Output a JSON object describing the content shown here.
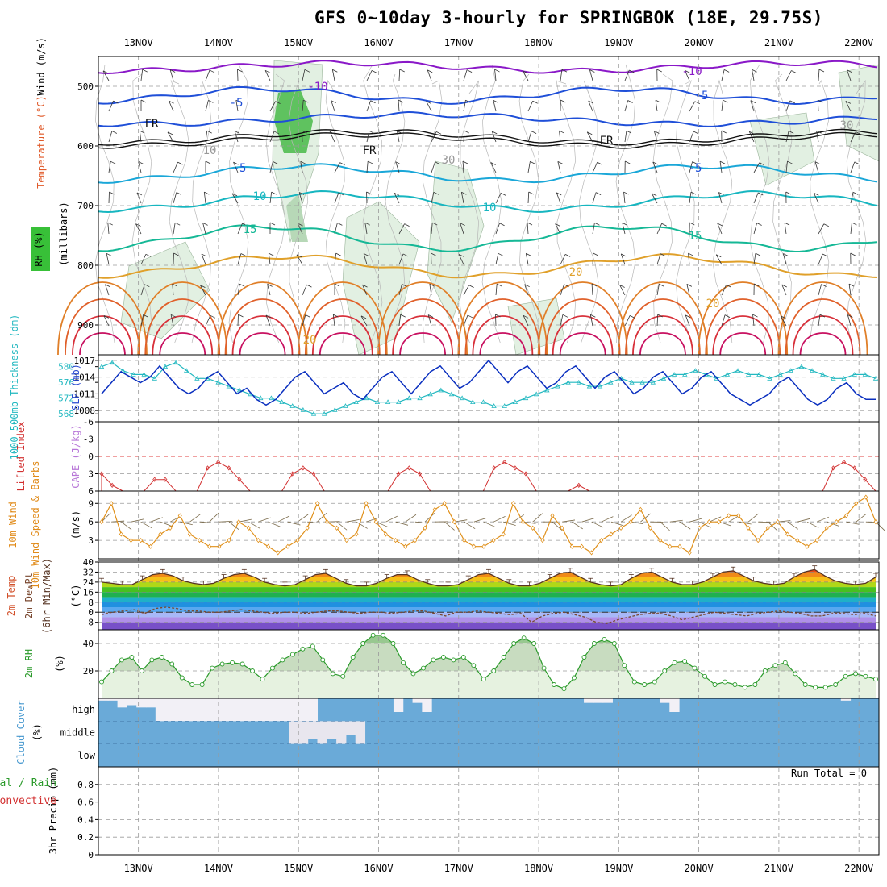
{
  "title": "GFS 0~10day 3-hourly for SPRINGBOK (18E, 29.75S)",
  "dates": [
    "13NOV",
    "14NOV",
    "15NOV",
    "16NOV",
    "17NOV",
    "18NOV",
    "19NOV",
    "20NOV",
    "21NOV",
    "22NOV"
  ],
  "panels": {
    "upper": {
      "label_wind": "Wind (m/s)",
      "label_temp": "Temperature (°C)",
      "label_rh": "RH (%)",
      "label_mb": "(millibars)",
      "ticks": [
        "500",
        "600",
        "700",
        "800",
        "900"
      ],
      "contour_labels": [
        "-10",
        "-10",
        "-5",
        "-5",
        "-5",
        "-5",
        "FR",
        "FR",
        "FR",
        "10",
        "10",
        "15",
        "15",
        "20",
        "20",
        "20",
        "10",
        "30",
        "30"
      ]
    },
    "slp": {
      "label_thick": "1000-500mb Thickness (dm)",
      "label_slp": "SLP (mb)",
      "left_ticks": [
        "580",
        "576",
        "572",
        "568"
      ],
      "right_ticks": [
        "1017",
        "1014",
        "1011",
        "1008"
      ]
    },
    "li": {
      "label_li": "Lifted Index",
      "label_cape": "CAPE (J/kg)",
      "ticks": [
        "-6",
        "-3",
        "0",
        "3",
        "6"
      ]
    },
    "wind10": {
      "label": "10m Wind Speed & Barbs",
      "unit": "(m/s)",
      "ticks": [
        "9",
        "6",
        "3"
      ]
    },
    "temp": {
      "label1": "2m Temp",
      "label2": "2m DewPt",
      "label3": "(6hr Min/Max)",
      "unit": "(°C)",
      "ticks": [
        "40",
        "32",
        "24",
        "16",
        "8",
        "0",
        "-8"
      ]
    },
    "rh2m": {
      "label": "2m RH",
      "unit": "(%)",
      "ticks": [
        "40",
        "20"
      ]
    },
    "cloud": {
      "label": "Cloud Cover",
      "unit": "(%)",
      "levels": [
        "high",
        "middle",
        "low"
      ]
    },
    "precip": {
      "label1": "Total / Rain",
      "label2": "Convective",
      "label3": "3hr Precip (mm)",
      "ticks": [
        "0.8",
        "0.6",
        "0.4",
        "0.2",
        "0"
      ],
      "run_total": "Run Total = 0"
    }
  },
  "colors": {
    "grid": "#9a9a9a",
    "slp": "#0a2fbf",
    "thick": "#22b8c0",
    "li": "#d23030",
    "wind": "#e0901a",
    "barb": "#7a6a4a",
    "rh": "#2a9a2a",
    "cloudbg": "#6aaad8",
    "cloud": "#f2f0f6"
  },
  "chart_data": {
    "type": "line",
    "x_axis": "days 12.5NOV to 22.25NOV, 3-hourly",
    "series": [
      {
        "name": "SLP (mb)",
        "values": [
          1011,
          1013,
          1015,
          1014,
          1013,
          1014,
          1016,
          1014,
          1012,
          1011,
          1012,
          1014,
          1015,
          1013,
          1011,
          1012,
          1010,
          1009,
          1010,
          1012,
          1014,
          1015,
          1013,
          1011,
          1012,
          1013,
          1011,
          1010,
          1012,
          1014,
          1015,
          1013,
          1011,
          1013,
          1015,
          1016,
          1014,
          1012,
          1013,
          1015,
          1017,
          1015,
          1013,
          1015,
          1016,
          1014,
          1012,
          1013,
          1015,
          1016,
          1014,
          1012,
          1014,
          1015,
          1013,
          1011,
          1012,
          1014,
          1015,
          1013,
          1011,
          1012,
          1014,
          1015,
          1013,
          1011,
          1010,
          1009,
          1010,
          1011,
          1013,
          1014,
          1012,
          1010,
          1009,
          1010,
          1012,
          1013,
          1011,
          1010,
          1010
        ]
      },
      {
        "name": "1000-500mb Thickness (dm)",
        "values": [
          580,
          581,
          579,
          578,
          578,
          577,
          580,
          581,
          579,
          577,
          577,
          576,
          575,
          574,
          573,
          572,
          572,
          571,
          570,
          569,
          568,
          568,
          569,
          570,
          571,
          572,
          571,
          571,
          571,
          572,
          572,
          573,
          574,
          573,
          572,
          571,
          571,
          570,
          570,
          571,
          572,
          573,
          574,
          575,
          576,
          576,
          575,
          575,
          576,
          577,
          576,
          576,
          576,
          577,
          578,
          578,
          579,
          578,
          577,
          578,
          579,
          578,
          578,
          577,
          578,
          579,
          580,
          579,
          578,
          577,
          577,
          578,
          578,
          577
        ]
      },
      {
        "name": "Lifted Index",
        "values": [
          3,
          5,
          6,
          6,
          6,
          4,
          4,
          6,
          6,
          6,
          2,
          1,
          2,
          4,
          6,
          6,
          6,
          6,
          3,
          2,
          3,
          6,
          6,
          6,
          6,
          6,
          6,
          6,
          3,
          2,
          3,
          6,
          6,
          6,
          6,
          6,
          6,
          2,
          1,
          2,
          3,
          6,
          6,
          6,
          6,
          5,
          6,
          6,
          6,
          6,
          6,
          6,
          6,
          6,
          6,
          6,
          6,
          6,
          6,
          6,
          6,
          6,
          6,
          6,
          6,
          6,
          6,
          6,
          6,
          2,
          1,
          2,
          4,
          6
        ]
      },
      {
        "name": "10m Wind Speed (m/s)",
        "values": [
          6,
          9,
          4,
          3,
          3,
          2,
          4,
          5,
          7,
          4,
          3,
          2,
          2,
          3,
          6,
          5,
          3,
          2,
          1,
          2,
          3,
          5,
          9,
          6,
          5,
          3,
          4,
          9,
          6,
          4,
          3,
          2,
          3,
          5,
          8,
          9,
          6,
          3,
          2,
          2,
          3,
          4,
          9,
          6,
          5,
          3,
          7,
          5,
          2,
          2,
          1,
          3,
          4,
          5,
          6,
          8,
          5,
          3,
          2,
          2,
          1,
          5,
          6,
          6,
          7,
          7,
          5,
          3,
          5,
          6,
          4,
          3,
          2,
          3,
          5,
          6,
          7,
          9,
          10,
          6
        ]
      },
      {
        "name": "2m Temp (°C)",
        "values": [
          24,
          23,
          22,
          22,
          26,
          30,
          31,
          29,
          25,
          23,
          22,
          23,
          27,
          30,
          31,
          28,
          24,
          22,
          21,
          22,
          26,
          30,
          31,
          27,
          23,
          21,
          21,
          23,
          27,
          30,
          30,
          26,
          23,
          21,
          21,
          22,
          26,
          30,
          31,
          27,
          23,
          21,
          21,
          23,
          27,
          31,
          32,
          28,
          24,
          22,
          21,
          22,
          27,
          31,
          32,
          28,
          24,
          22,
          22,
          24,
          28,
          32,
          33,
          29,
          25,
          23,
          22,
          23,
          28,
          32,
          34,
          29,
          25,
          23,
          22,
          23,
          28
        ]
      },
      {
        "name": "2m DewPt (°C)",
        "values": [
          -2,
          0,
          1,
          2,
          -1,
          3,
          4,
          3,
          1,
          1,
          0,
          0,
          1,
          2,
          1,
          0,
          -1,
          0,
          0,
          -1,
          0,
          1,
          1,
          0,
          -1,
          0,
          0,
          -1,
          0,
          1,
          1,
          -1,
          -3,
          0,
          0,
          1,
          0,
          -1,
          -2,
          -1,
          -8,
          -3,
          -1,
          0,
          -2,
          -4,
          -8,
          -9,
          -6,
          -4,
          -2,
          -1,
          -1,
          -3,
          -6,
          -4,
          -2,
          0,
          -1,
          -2,
          -3,
          -1,
          0,
          1,
          0,
          -1,
          -3,
          -3,
          -1,
          -1,
          -2,
          -1,
          -3
        ]
      },
      {
        "name": "2m RH (%)",
        "values": [
          12,
          20,
          28,
          30,
          20,
          28,
          30,
          25,
          15,
          10,
          10,
          22,
          25,
          26,
          25,
          20,
          14,
          22,
          28,
          32,
          36,
          38,
          28,
          18,
          16,
          30,
          40,
          46,
          46,
          40,
          26,
          18,
          22,
          28,
          30,
          28,
          30,
          24,
          14,
          20,
          30,
          40,
          44,
          40,
          22,
          10,
          7,
          15,
          30,
          40,
          43,
          40,
          24,
          12,
          10,
          12,
          20,
          26,
          27,
          22,
          16,
          10,
          12,
          10,
          8,
          10,
          20,
          24,
          26,
          18,
          10,
          8,
          8,
          10,
          16,
          18,
          16,
          14
        ]
      },
      {
        "name": "Cloud Cover high (%)",
        "values": [
          10,
          10,
          40,
          30,
          40,
          40,
          100,
          100,
          100,
          100,
          100,
          100,
          100,
          100,
          100,
          100,
          100,
          100,
          100,
          100,
          100,
          100,
          100,
          0,
          0,
          0,
          0,
          0,
          0,
          0,
          0,
          60,
          0,
          20,
          60,
          0,
          0,
          0,
          0,
          0,
          0,
          0,
          0,
          0,
          0,
          0,
          0,
          0,
          0,
          0,
          0,
          20,
          20,
          20,
          0,
          0,
          0,
          0,
          0,
          20,
          60,
          0,
          0,
          0,
          0,
          0,
          0,
          0,
          0,
          0,
          0,
          0,
          0,
          0,
          0,
          0,
          0,
          0,
          10,
          0,
          0,
          0
        ]
      },
      {
        "name": "Cloud Cover middle (%)",
        "values": [
          0,
          0,
          0,
          0,
          0,
          0,
          0,
          0,
          0,
          0,
          0,
          0,
          0,
          0,
          0,
          0,
          0,
          0,
          0,
          0,
          100,
          100,
          80,
          100,
          80,
          100,
          60,
          100,
          0,
          0,
          0,
          0,
          0,
          0,
          0,
          0,
          0,
          0,
          0,
          0,
          0,
          0,
          0,
          0,
          0,
          0,
          0,
          0,
          0,
          0,
          0,
          0,
          0,
          0,
          0,
          0,
          0,
          0,
          0,
          0,
          0,
          0,
          0,
          0,
          0,
          0,
          0,
          0,
          0,
          0,
          0,
          0,
          0,
          0,
          0,
          0,
          0,
          0,
          0,
          0,
          0,
          0
        ]
      },
      {
        "name": "3hr Precip (mm)",
        "values": [
          0,
          0,
          0,
          0,
          0,
          0,
          0,
          0,
          0,
          0,
          0,
          0,
          0,
          0,
          0,
          0,
          0,
          0,
          0,
          0,
          0,
          0,
          0,
          0,
          0,
          0,
          0,
          0,
          0,
          0,
          0,
          0,
          0,
          0,
          0,
          0,
          0,
          0,
          0,
          0,
          0,
          0,
          0,
          0,
          0,
          0,
          0,
          0,
          0,
          0,
          0,
          0,
          0,
          0,
          0,
          0,
          0,
          0,
          0,
          0,
          0,
          0,
          0,
          0,
          0,
          0,
          0,
          0,
          0,
          0,
          0,
          0,
          0,
          0,
          0,
          0,
          0,
          0
        ]
      }
    ],
    "ylim_slp": [
      1006,
      1018
    ],
    "ylim_thick": [
      566,
      583
    ],
    "ylim_li": [
      -6,
      6
    ],
    "ylim_wind": [
      0,
      11
    ],
    "ylim_temp": [
      -14,
      40
    ],
    "ylim_rh": [
      0,
      50
    ],
    "ylim_precip": [
      0,
      1
    ]
  }
}
